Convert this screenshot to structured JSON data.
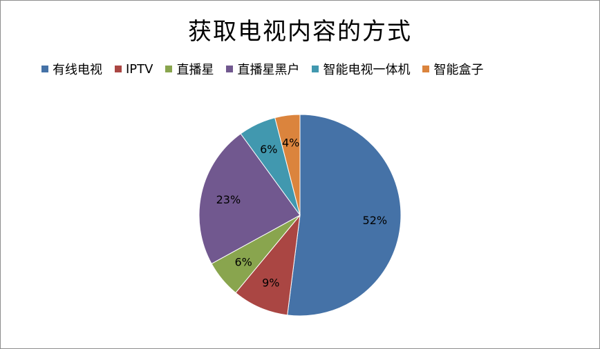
{
  "chart_data": {
    "type": "pie",
    "title": "获取电视内容的方式",
    "legend_position": "top",
    "categories": [
      "有线电视",
      "IPTV",
      "直播星",
      "直播星黑户",
      "智能电视一体机",
      "智能盒子"
    ],
    "values": [
      52,
      9,
      6,
      23,
      6,
      4
    ],
    "value_labels": [
      "52%",
      "9%",
      "6%",
      "23%",
      "6%",
      "4%"
    ],
    "colors": [
      "#4572a7",
      "#aa4643",
      "#89a54e",
      "#71588f",
      "#4198af",
      "#db843d"
    ]
  }
}
